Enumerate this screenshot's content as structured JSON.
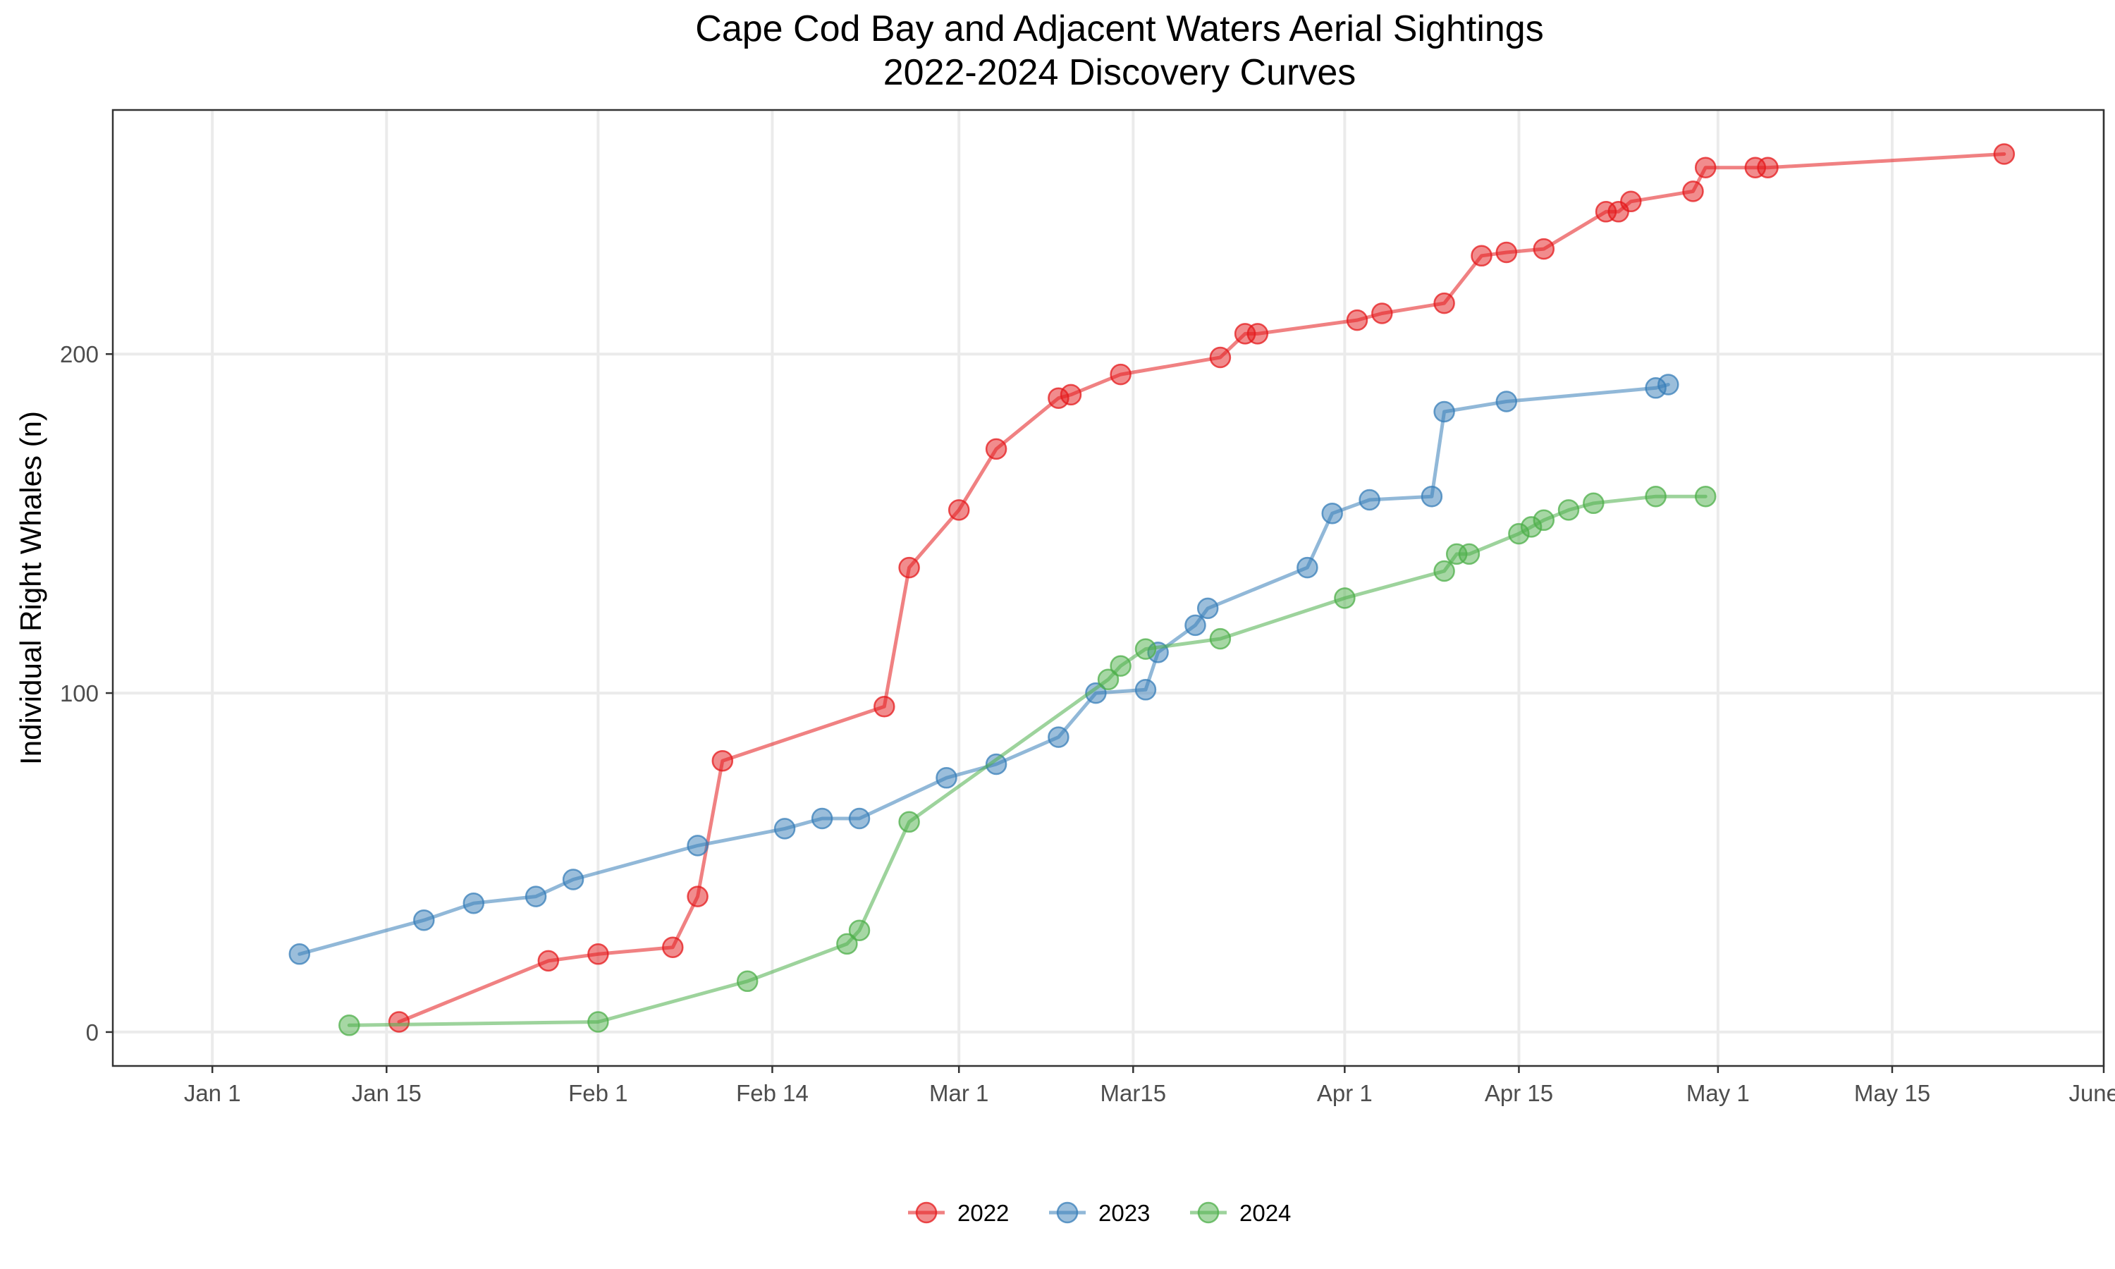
{
  "chart_data": {
    "type": "line",
    "title": "Cape Cod Bay and Adjacent Waters Aerial Sightings",
    "subtitle": "2022-2024 Discovery Curves",
    "xlabel": "",
    "ylabel": "Individual Right Whales (n)",
    "x_tick_labels": [
      "Jan 1",
      "Jan 15",
      "Feb 1",
      "Feb 14",
      "Mar 1",
      "Mar15",
      "Apr 1",
      "Apr 15",
      "May 1",
      "May 15",
      "June 1"
    ],
    "x_tick_days": [
      1,
      15,
      32,
      46,
      61,
      75,
      92,
      106,
      122,
      136,
      153
    ],
    "xlim": [
      -7,
      153
    ],
    "y_ticks": [
      0,
      100,
      200
    ],
    "ylim": [
      -10,
      272
    ],
    "grid": true,
    "legend_position": "bottom",
    "series": [
      {
        "name": "2022",
        "color": "#e41a1c",
        "x": [
          "Jan 16",
          "Jan 28",
          "Feb 1",
          "Feb 7",
          "Feb 9",
          "Feb 11",
          "Feb 24",
          "Feb 26",
          "Mar 2",
          "Mar 5",
          "Mar 10",
          "Mar 11",
          "Mar 15",
          "Mar 23",
          "Mar 25",
          "Mar 26",
          "Apr 3",
          "Apr 5",
          "Apr 10",
          "Apr 13",
          "Apr 15",
          "Apr 18",
          "Apr 23",
          "Apr 24",
          "Apr 25",
          "Apr 30",
          "May 1",
          "May 5",
          "May 6",
          "May 25"
        ],
        "y": [
          3,
          21,
          23,
          25,
          40,
          80,
          96,
          137,
          154,
          172,
          187,
          188,
          194,
          199,
          206,
          206,
          210,
          212,
          215,
          229,
          230,
          231,
          242,
          242,
          245,
          248,
          255,
          255,
          255,
          259
        ]
      },
      {
        "name": "2023",
        "color": "#377eb8",
        "x": [
          "Jan 8",
          "Jan 18",
          "Jan 22",
          "Jan 27",
          "Jan 30",
          "Feb 9",
          "Feb 16",
          "Feb 19",
          "Feb 22",
          "Mar 1",
          "Mar 5",
          "Mar 10",
          "Mar 13",
          "Mar 17",
          "Mar 18",
          "Mar 21",
          "Mar 22",
          "Mar 30",
          "Apr 1",
          "Apr 4",
          "Apr 9",
          "Apr 10",
          "Apr 15",
          "Apr 27",
          "Apr 28"
        ],
        "y": [
          23,
          33,
          38,
          40,
          45,
          55,
          60,
          63,
          63,
          75,
          79,
          87,
          100,
          101,
          112,
          120,
          125,
          137,
          153,
          157,
          158,
          183,
          186,
          190,
          191
        ]
      },
      {
        "name": "2024",
        "color": "#4daf4a",
        "x": [
          "Jan 12",
          "Feb 1",
          "Feb 13",
          "Feb 21",
          "Feb 22",
          "Feb 26",
          "Mar 14",
          "Mar 15",
          "Mar 17",
          "Mar 23",
          "Apr 2",
          "Apr 10",
          "Apr 11",
          "Apr 12",
          "Apr 16",
          "Apr 17",
          "Apr 18",
          "Apr 20",
          "Apr 22",
          "Apr 27",
          "May 1"
        ],
        "y": [
          2,
          3,
          15,
          26,
          30,
          62,
          104,
          108,
          113,
          116,
          128,
          136,
          141,
          141,
          147,
          149,
          151,
          154,
          156,
          158,
          158
        ]
      }
    ]
  }
}
